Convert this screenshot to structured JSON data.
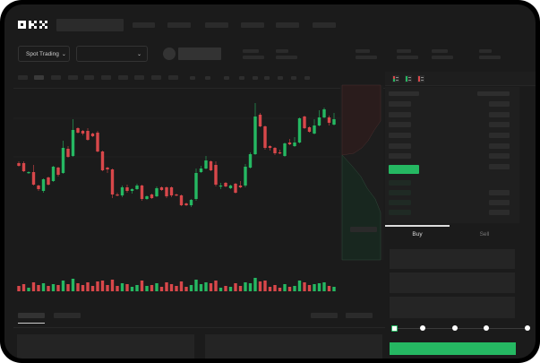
{
  "brand": {
    "logo": "OKX"
  },
  "toolbar": {
    "market_select": "Spot Trading",
    "pair_select": ""
  },
  "trade": {
    "tab_buy": "Buy",
    "tab_sell": "Sell",
    "active_tab": "Buy",
    "slider_percent": 0
  },
  "colors": {
    "up": "#25b862",
    "down": "#d8474a",
    "background": "#1b1b1b",
    "accent": "#25b862"
  },
  "icons": [
    "chevron-down-icon",
    "order-book-both-icon",
    "order-book-bids-icon",
    "order-book-asks-icon"
  ],
  "chart_data": {
    "type": "candlestick",
    "candles": [
      [
        58,
        60,
        54,
        55
      ],
      [
        58,
        60,
        48,
        49
      ],
      [
        47,
        49,
        46,
        48
      ],
      [
        48,
        56,
        33,
        34
      ],
      [
        33,
        34,
        27,
        29
      ],
      [
        27,
        41,
        25,
        40
      ],
      [
        42,
        43,
        33,
        34
      ],
      [
        38,
        55,
        37,
        54
      ],
      [
        53,
        54,
        43,
        45
      ],
      [
        47,
        83,
        46,
        75
      ],
      [
        74,
        77,
        64,
        65
      ],
      [
        66,
        107,
        65,
        95
      ],
      [
        97,
        98,
        91,
        92
      ],
      [
        94,
        95,
        89,
        91
      ],
      [
        94,
        97,
        83,
        84
      ],
      [
        91,
        92,
        87,
        88
      ],
      [
        92,
        94,
        70,
        71
      ],
      [
        71,
        72,
        49,
        50
      ],
      [
        53,
        54,
        47,
        51
      ],
      [
        51,
        52,
        19,
        23
      ],
      [
        23,
        25,
        21,
        22
      ],
      [
        22,
        33,
        20,
        31
      ],
      [
        31,
        34,
        25,
        27
      ],
      [
        27,
        30,
        24,
        29
      ],
      [
        29,
        35,
        28,
        33
      ],
      [
        33,
        34,
        16,
        18
      ],
      [
        18,
        22,
        17,
        21
      ],
      [
        23,
        24,
        18,
        19
      ],
      [
        21,
        32,
        20,
        30
      ],
      [
        31,
        32,
        27,
        28
      ],
      [
        31,
        32,
        19,
        21
      ],
      [
        31,
        32,
        20,
        22
      ],
      [
        23,
        24,
        21,
        22
      ],
      [
        22,
        23,
        10,
        11
      ],
      [
        13,
        14,
        10,
        11
      ],
      [
        11,
        18,
        9,
        17
      ],
      [
        18,
        52,
        16,
        47
      ],
      [
        48,
        55,
        47,
        52
      ],
      [
        52,
        66,
        51,
        61
      ],
      [
        60,
        61,
        49,
        50
      ],
      [
        56,
        60,
        32,
        34
      ],
      [
        32,
        36,
        29,
        33
      ],
      [
        36,
        37,
        31,
        32
      ],
      [
        30,
        34,
        29,
        33
      ],
      [
        35,
        36,
        24,
        25
      ],
      [
        33,
        38,
        30,
        31
      ],
      [
        33,
        57,
        31,
        54
      ],
      [
        53,
        70,
        52,
        68
      ],
      [
        68,
        125,
        67,
        110
      ],
      [
        112,
        114,
        98,
        99
      ],
      [
        99,
        100,
        73,
        75
      ],
      [
        77,
        78,
        72,
        75
      ],
      [
        75,
        76,
        67,
        69
      ],
      [
        70,
        73,
        68,
        69
      ],
      [
        66,
        81,
        65,
        80
      ],
      [
        81,
        85,
        78,
        79
      ],
      [
        77,
        87,
        76,
        81
      ],
      [
        81,
        109,
        80,
        108
      ],
      [
        110,
        111,
        96,
        97
      ],
      [
        98,
        99,
        92,
        93
      ],
      [
        91,
        107,
        90,
        100
      ],
      [
        100,
        117,
        99,
        109
      ],
      [
        109,
        120,
        108,
        118
      ],
      [
        109,
        111,
        100,
        103
      ],
      [
        101,
        114,
        100,
        107
      ]
    ],
    "volumes": [
      6,
      8,
      4,
      10,
      7,
      9,
      6,
      8,
      7,
      12,
      8,
      14,
      9,
      7,
      10,
      6,
      11,
      12,
      7,
      13,
      6,
      9,
      8,
      5,
      7,
      12,
      6,
      7,
      9,
      5,
      10,
      8,
      6,
      11,
      5,
      7,
      13,
      8,
      10,
      9,
      12,
      4,
      6,
      5,
      9,
      6,
      10,
      9,
      15,
      11,
      12,
      5,
      7,
      4,
      8,
      5,
      6,
      12,
      10,
      7,
      8,
      9,
      10,
      6,
      5
    ]
  }
}
